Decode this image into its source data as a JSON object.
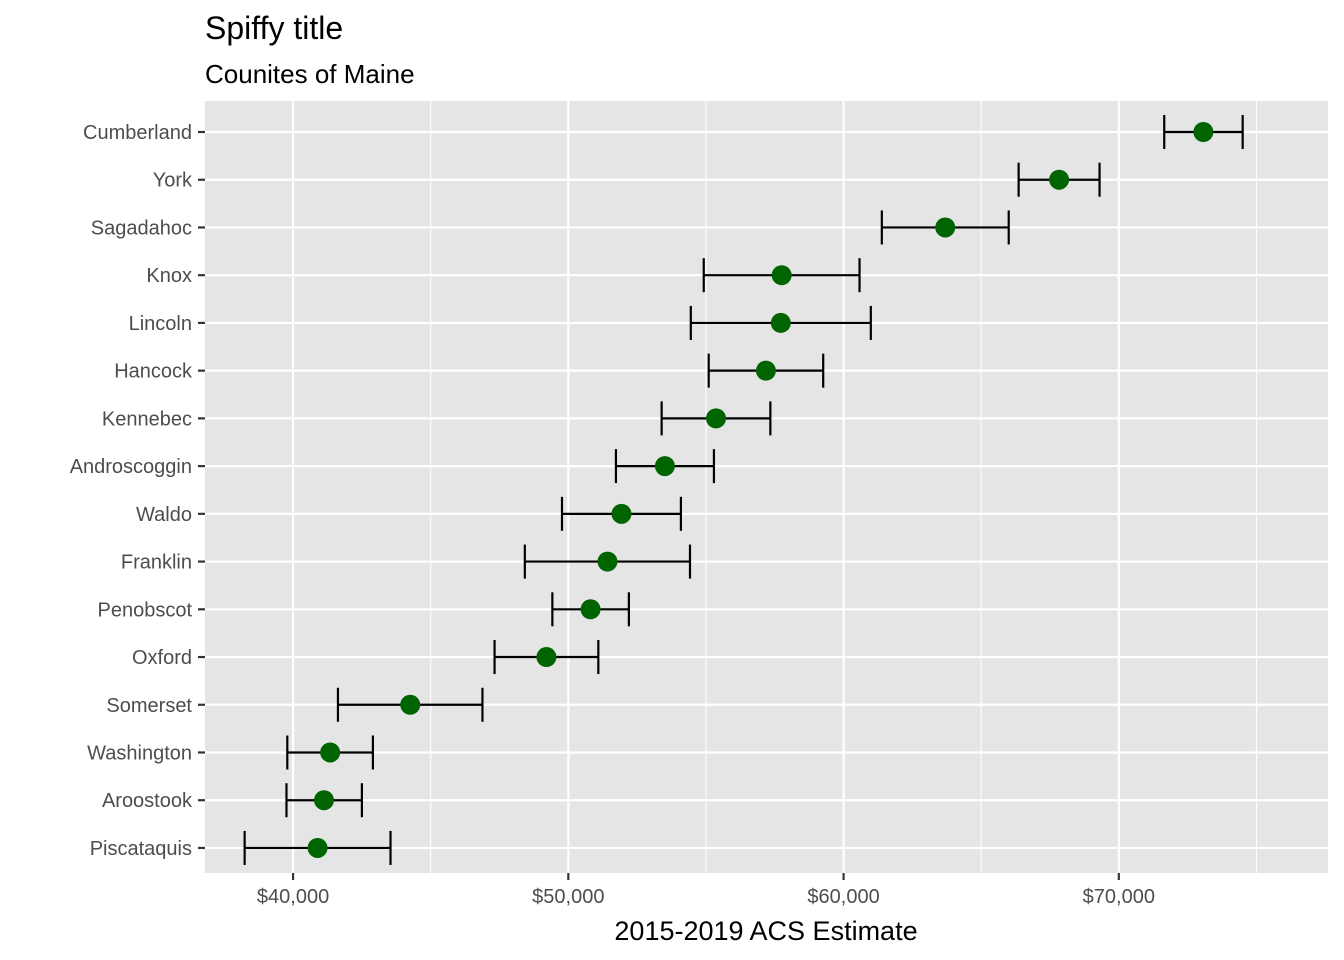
{
  "chart_data": {
    "type": "scatter",
    "title": "Spiffy title",
    "subtitle": "Counites of Maine",
    "xlabel": "2015-2019 ACS Estimate",
    "ylabel": "",
    "xlim": [
      36800,
      77600
    ],
    "x_major_ticks": [
      40000,
      50000,
      60000,
      70000
    ],
    "x_tick_labels": [
      "$40,000",
      "$50,000",
      "$60,000",
      "$70,000"
    ],
    "x_minor_ticks": [
      45000,
      55000,
      65000,
      75000
    ],
    "grid": true,
    "legend": "none",
    "point_color": "#006400",
    "errorbar_color": "#000000",
    "panel_background": "#e5e5e5",
    "grid_color": "#ffffff",
    "categories": [
      "Cumberland",
      "York",
      "Sagadahoc",
      "Knox",
      "Lincoln",
      "Hancock",
      "Kennebec",
      "Androscoggin",
      "Waldo",
      "Franklin",
      "Penobscot",
      "Oxford",
      "Somerset",
      "Washington",
      "Aroostook",
      "Piscataquis"
    ],
    "estimate": [
      73072,
      67830,
      63694,
      57751,
      57720,
      57178,
      55365,
      53509,
      51931,
      51422,
      50808,
      49204,
      44256,
      41347,
      41123,
      40890
    ],
    "lower": [
      71650,
      66360,
      61390,
      54920,
      54450,
      55100,
      53390,
      51730,
      49770,
      48420,
      49420,
      47320,
      41630,
      39790,
      39760,
      38240
    ],
    "upper": [
      74500,
      69300,
      66000,
      60580,
      60990,
      59260,
      57340,
      55290,
      54090,
      54420,
      52200,
      51090,
      46880,
      42900,
      42500,
      43540
    ]
  }
}
